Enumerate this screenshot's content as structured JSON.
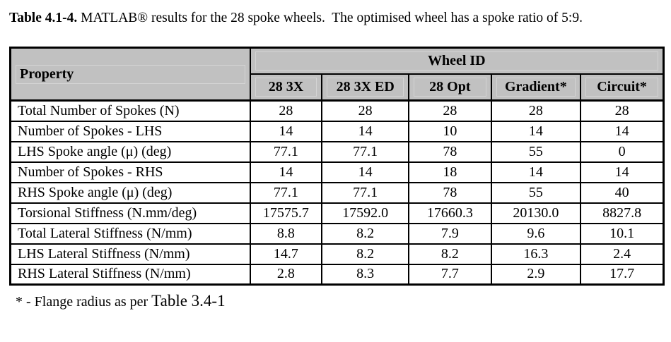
{
  "caption": {
    "label": "Table 4.1-4.",
    "text": " MATLAB® results for the 28 spoke wheels.  The optimised wheel has a spoke ratio of 5:9."
  },
  "table": {
    "corner_header": "Property",
    "group_header": "Wheel ID",
    "columns": [
      "28 3X",
      "28 3X ED",
      "28 Opt",
      "Gradient*",
      "Circuit*"
    ],
    "rows": [
      {
        "property": "Total Number of Spokes (N)",
        "values": [
          "28",
          "28",
          "28",
          "28",
          "28"
        ]
      },
      {
        "property": "Number of Spokes - LHS",
        "values": [
          "14",
          "14",
          "10",
          "14",
          "14"
        ]
      },
      {
        "property": "LHS Spoke angle (μ) (deg)",
        "values": [
          "77.1",
          "77.1",
          "78",
          "55",
          "0"
        ]
      },
      {
        "property": "Number of Spokes - RHS",
        "values": [
          "14",
          "14",
          "18",
          "14",
          "14"
        ]
      },
      {
        "property": "RHS Spoke angle (μ) (deg)",
        "values": [
          "77.1",
          "77.1",
          "78",
          "55",
          "40"
        ]
      },
      {
        "property": "Torsional Stiffness (N.mm/deg)",
        "values": [
          "17575.7",
          "17592.0",
          "17660.3",
          "20130.0",
          "8827.8"
        ]
      },
      {
        "property": "Total Lateral Stiffness (N/mm)",
        "values": [
          "8.8",
          "8.2",
          "7.9",
          "9.6",
          "10.1"
        ]
      },
      {
        "property": "LHS Lateral Stiffness (N/mm)",
        "values": [
          "14.7",
          "8.2",
          "8.2",
          "16.3",
          "2.4"
        ]
      },
      {
        "property": "RHS Lateral Stiffness (N/mm)",
        "values": [
          "2.8",
          "8.3",
          "7.7",
          "2.9",
          "17.7"
        ]
      }
    ]
  },
  "footnote": {
    "prefix": "* - Flange radius as per ",
    "reference": "Table 3.4-1"
  },
  "colors": {
    "header_bg": "#c1c1c1",
    "border": "#000000",
    "page_bg": "#ffffff"
  }
}
